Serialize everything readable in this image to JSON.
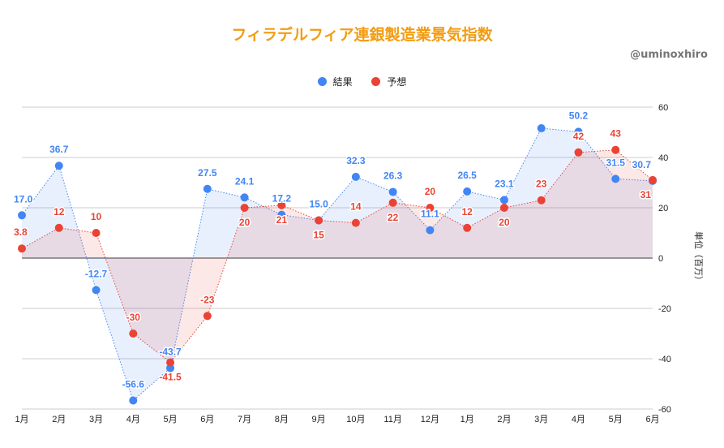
{
  "title": "フィラデルフィア連銀製造業景気指数",
  "credit": "@uminoxhiro",
  "chart_data": {
    "type": "area",
    "title": "フィラデルフィア連銀製造業景気指数",
    "ylabel": "単位（百万）",
    "ylim": [
      -60,
      60
    ],
    "yticks": [
      60,
      40,
      20,
      0,
      -20,
      -40,
      -60
    ],
    "grid": true,
    "legend_position": "top",
    "categories": [
      "1月",
      "2月",
      "3月",
      "4月",
      "5月",
      "6月",
      "7月",
      "8月",
      "9月",
      "10月",
      "11月",
      "12月",
      "1月",
      "2月",
      "3月",
      "4月",
      "5月",
      "6月"
    ],
    "series": [
      {
        "name": "結果",
        "color": "#4285f4",
        "values": [
          17.0,
          36.7,
          -12.7,
          -56.6,
          -43.7,
          27.5,
          24.1,
          17.2,
          15.0,
          32.3,
          26.3,
          11.1,
          26.5,
          23.1,
          51.6,
          50.2,
          31.5,
          30.7
        ],
        "labels": [
          "17.0",
          "36.7",
          "-12.7",
          "-56.6",
          "-43.7",
          "27.5",
          "24.1",
          "17.2",
          "15.0",
          "32.3",
          "26.3",
          "11.1",
          "26.5",
          "23.1",
          "",
          "50.2",
          "31.5",
          "30.7"
        ]
      },
      {
        "name": "予想",
        "color": "#ea4335",
        "values": [
          3.8,
          12,
          10,
          -30,
          -41.5,
          -23,
          20,
          21,
          15,
          14,
          22,
          20,
          12,
          20,
          23,
          42,
          43,
          31
        ],
        "labels": [
          "3.8",
          "12",
          "10",
          "-30",
          "-41.5",
          "-23",
          "20",
          "21",
          "15",
          "14",
          "22",
          "20",
          "12",
          "20",
          "23",
          "42",
          "43",
          "31"
        ]
      }
    ]
  }
}
